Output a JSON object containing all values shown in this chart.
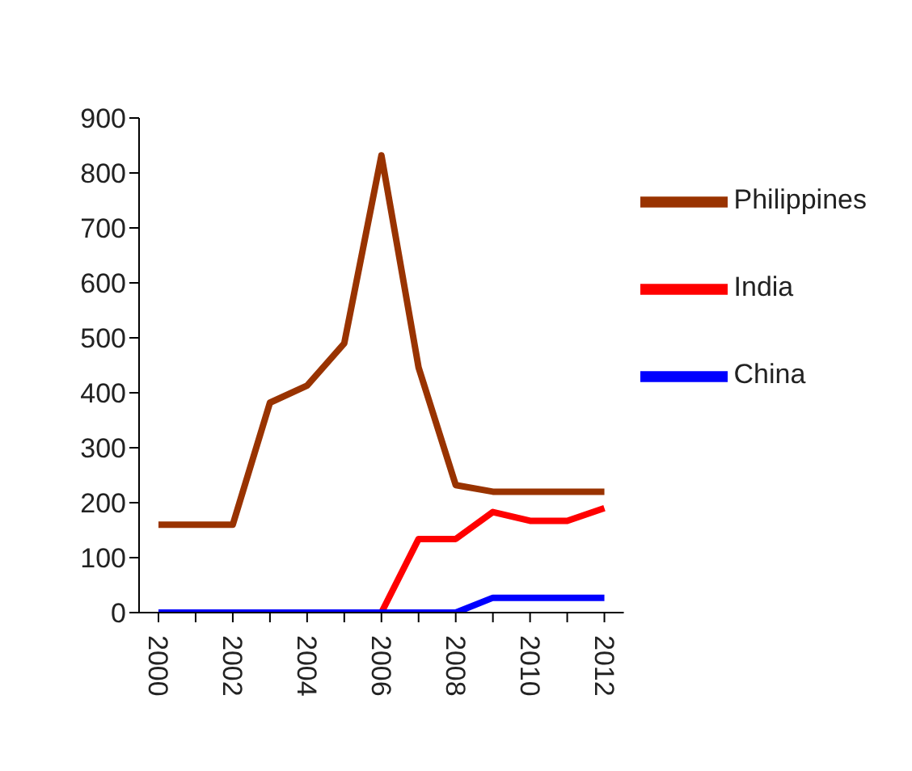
{
  "chart_data": {
    "type": "line",
    "categories": [
      "2000",
      null,
      "2002",
      null,
      "2004",
      null,
      "2006",
      null,
      "2008",
      null,
      "2010",
      null,
      "2012"
    ],
    "series": [
      {
        "name": "Philippines",
        "color": "#993300",
        "values": [
          160,
          160,
          160,
          382,
          413,
          490,
          832,
          446,
          232,
          220,
          220,
          220,
          220
        ]
      },
      {
        "name": "India",
        "color": "#ff0000",
        "values": [
          null,
          null,
          null,
          null,
          null,
          null,
          0,
          134,
          134,
          183,
          167,
          167,
          190
        ]
      },
      {
        "name": "China",
        "color": "#0000ff",
        "values": [
          0,
          0,
          0,
          0,
          0,
          0,
          0,
          0,
          0,
          27,
          27,
          27,
          27
        ]
      }
    ],
    "ylim": [
      0,
      900
    ],
    "yticks": [
      0,
      100,
      200,
      300,
      400,
      500,
      600,
      700,
      800,
      900
    ],
    "grid": false,
    "legend": "right",
    "marker": "none",
    "line_style": "solid"
  }
}
